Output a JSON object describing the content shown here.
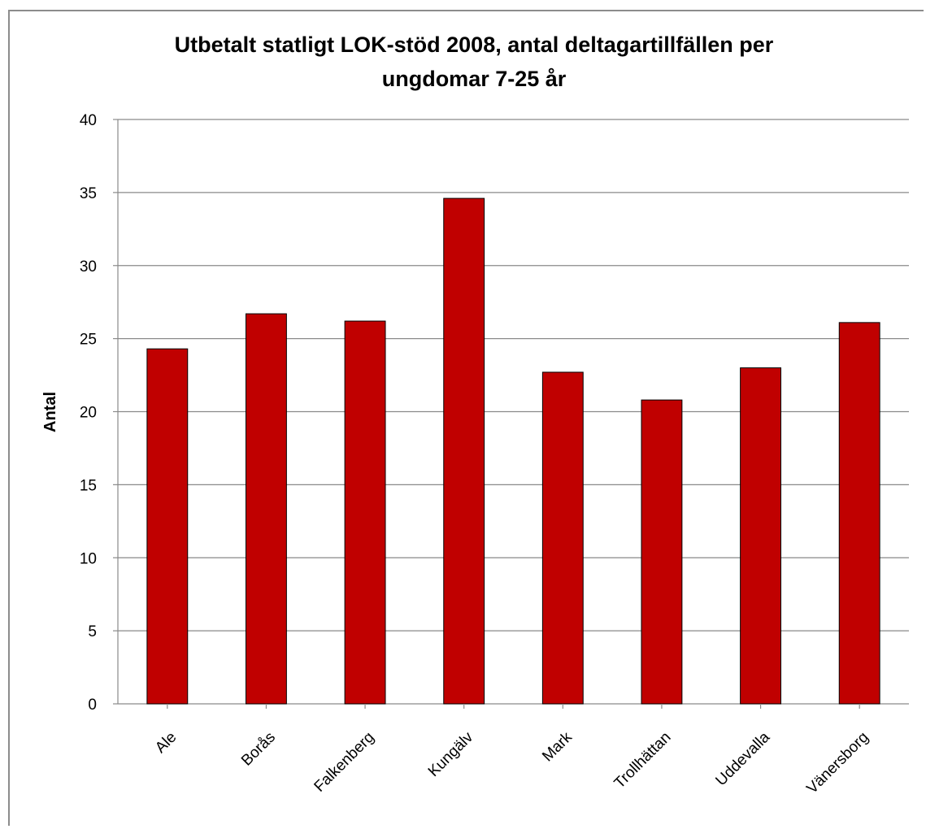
{
  "chart_data": {
    "type": "bar",
    "title_lines": [
      "Utbetalt statligt LOK-stöd 2008,  antal deltagartillfällen per",
      "ungdomar 7-25 år"
    ],
    "xlabel": "",
    "ylabel": "Antal",
    "categories": [
      "Ale",
      "Borås",
      "Falkenberg",
      "Kungälv",
      "Mark",
      "Trollhättan",
      "Uddevalla",
      "Vänersborg"
    ],
    "values": [
      24.3,
      26.7,
      26.2,
      34.6,
      22.7,
      20.8,
      23.0,
      26.1
    ],
    "ylim": [
      0,
      40
    ],
    "yticks": [
      0,
      5,
      10,
      15,
      20,
      25,
      30,
      35,
      40
    ],
    "grid": true,
    "legend": "none",
    "bar_color": "#c00000",
    "bar_border_color": "#000000"
  }
}
